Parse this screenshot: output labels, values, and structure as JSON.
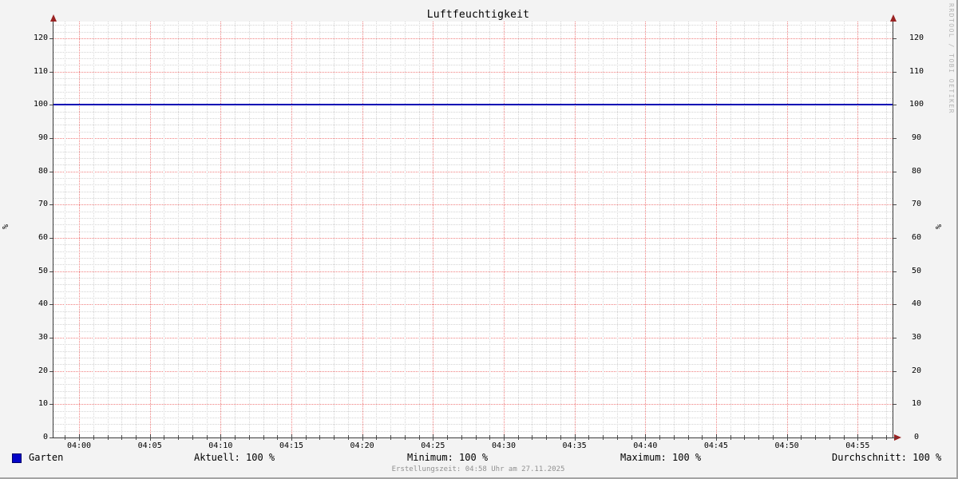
{
  "title": "Luftfeuchtigkeit",
  "watermark": "RRDTOOL / TOBI OETIKER",
  "footer": "Erstellungszeit: 04:58 Uhr am 27.11.2025",
  "axes": {
    "unit_left": "%",
    "unit_right": "%"
  },
  "legend": {
    "series_label": "Garten",
    "series_color": "#0404c8",
    "stats": [
      {
        "label": "Aktuell:",
        "value": "100 %"
      },
      {
        "label": "Minimum:",
        "value": "100 %"
      },
      {
        "label": "Maximum:",
        "value": "100 %"
      },
      {
        "label": "Durchschnitt:",
        "value": "100 %"
      }
    ]
  },
  "chart_data": {
    "type": "line",
    "title": "Luftfeuchtigkeit",
    "xlabel": "",
    "ylabel": "%",
    "ylim": [
      0,
      125
    ],
    "y_ticks": [
      0,
      10,
      20,
      30,
      40,
      50,
      60,
      70,
      80,
      90,
      100,
      110,
      120
    ],
    "y_minor_step": 2,
    "x_ticks": [
      "04:00",
      "04:05",
      "04:10",
      "04:15",
      "04:20",
      "04:25",
      "04:30",
      "04:35",
      "04:40",
      "04:45",
      "04:50",
      "04:55"
    ],
    "x_minor_per_major": 5,
    "grid": true,
    "legend_position": "bottom",
    "series": [
      {
        "name": "Garten",
        "color": "#0000b4",
        "constant_value": 100,
        "x": [
          "04:00",
          "04:05",
          "04:10",
          "04:15",
          "04:20",
          "04:25",
          "04:30",
          "04:35",
          "04:40",
          "04:45",
          "04:50",
          "04:55"
        ],
        "values": [
          100,
          100,
          100,
          100,
          100,
          100,
          100,
          100,
          100,
          100,
          100,
          100
        ]
      }
    ],
    "stats": {
      "aktuell": 100,
      "minimum": 100,
      "maximum": 100,
      "durchschnitt": 100,
      "unit": "%"
    }
  },
  "colors": {
    "background": "#f3f3f3",
    "canvas": "#ffffff",
    "major_grid": "#f07f7f",
    "minor_grid": "#d4d4d4",
    "axis": "#3a3a3a",
    "arrow": "#992222",
    "line": "#0000b4",
    "watermark": "#b5b5b5",
    "footer": "#909090"
  }
}
